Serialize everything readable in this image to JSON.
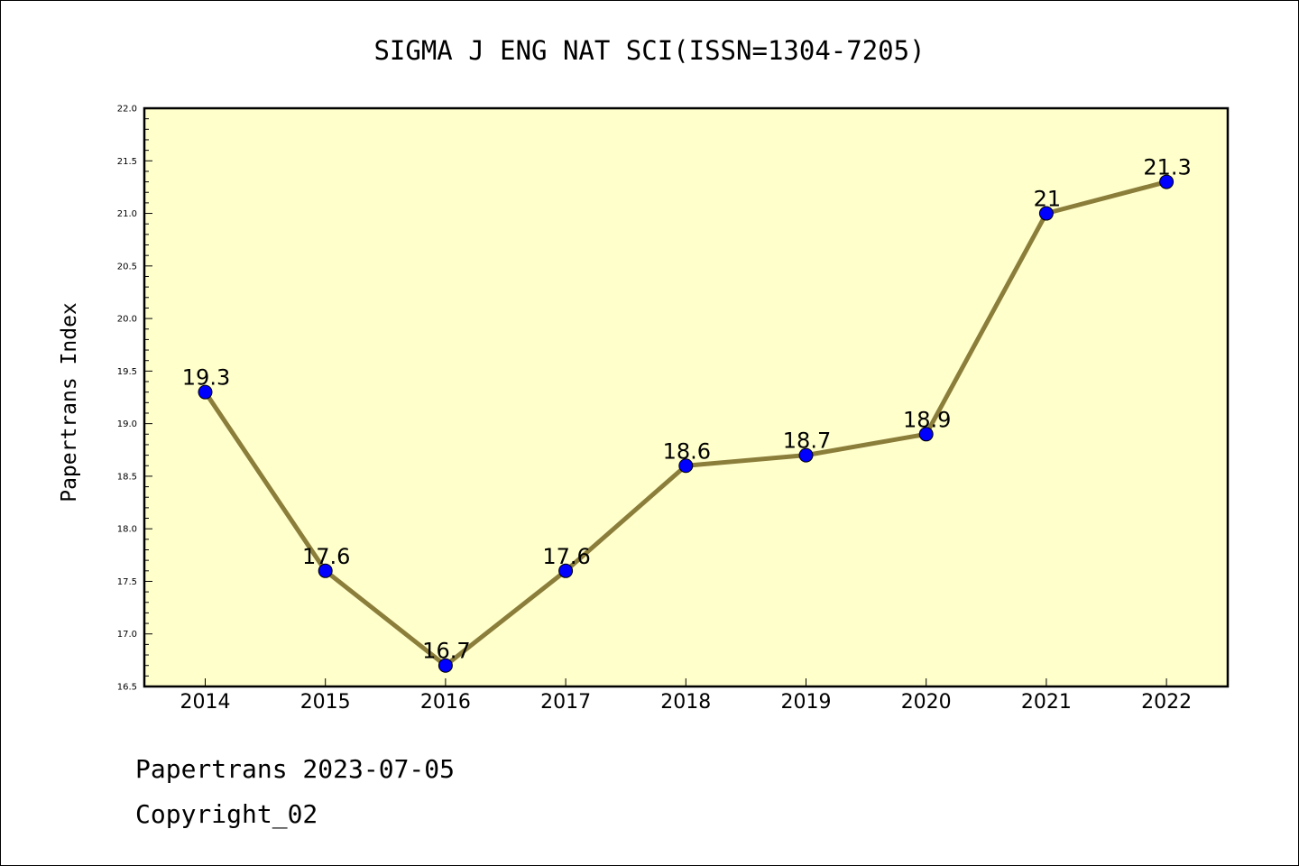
{
  "chart_data": {
    "type": "line",
    "title": "SIGMA J ENG NAT SCI(ISSN=1304-7205)",
    "ylabel": "Papertrans Index",
    "xlabel": "",
    "categories": [
      "2014",
      "2015",
      "2016",
      "2017",
      "2018",
      "2019",
      "2020",
      "2021",
      "2022"
    ],
    "values": [
      19.3,
      17.6,
      16.7,
      17.6,
      18.6,
      18.7,
      18.9,
      21.0,
      21.3
    ],
    "value_labels": [
      "19.3",
      "17.6",
      "16.7",
      "17.6",
      "18.6",
      "18.7",
      "18.9",
      "21",
      "21.3"
    ],
    "ylim": [
      16.5,
      22.0
    ],
    "yticks": [
      "16.5",
      "17.0",
      "17.5",
      "18.0",
      "18.5",
      "19.0",
      "19.5",
      "20.0",
      "20.5",
      "21.0",
      "21.5",
      "22.0"
    ],
    "grid": false,
    "colors": {
      "plot_background": "#ffffcc",
      "line": "#8b7d3a",
      "marker": "#0000ff"
    }
  },
  "footer": {
    "date_line": "Papertrans 2023-07-05",
    "copyright": "Copyright_02"
  }
}
